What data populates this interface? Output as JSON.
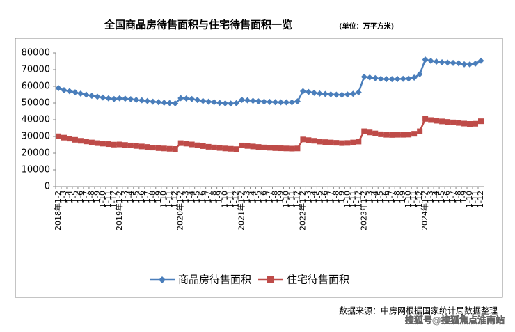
{
  "chart_data": {
    "type": "line",
    "title": "全国商品房待售面积与住宅待售面积一览",
    "subtitle": "(单位：万平方米)",
    "categories": [
      "2018年1-2",
      "1-3",
      "1-4",
      "1-5",
      "1-6",
      "1-7",
      "1-8",
      "1-9",
      "1-10",
      "1-11",
      "1-12",
      "2019年1-2",
      "1-3",
      "1-4",
      "1-5",
      "1-6",
      "1-7",
      "1-8",
      "1-9",
      "1-10",
      "1-11",
      "1-12",
      "2020年1-2",
      "1-3",
      "1-4",
      "1-5",
      "1-6",
      "1-7",
      "1-8",
      "1-9",
      "1-10",
      "1-11",
      "1-12",
      "2021年1-2",
      "1-3",
      "1-4",
      "1-5",
      "1-6",
      "1-7",
      "1-8",
      "1-9",
      "1-10",
      "1-11",
      "1-12",
      "2022年1-2",
      "1-3",
      "1-4",
      "1-5",
      "1-6",
      "1-7",
      "1-8",
      "1-9",
      "1-10",
      "1-11",
      "1-12",
      "2023年1-2",
      "1-3",
      "1-4",
      "1-5",
      "1-6",
      "1-7",
      "1-8",
      "1-9",
      "1-10",
      "1-11",
      "1-12",
      "2024年1-2",
      "1-3",
      "1-4",
      "1-5",
      "1-6",
      "1-7",
      "1-8",
      "1-9",
      "1-10",
      "1-11",
      "1-12"
    ],
    "series": [
      {
        "name": "商品房待售面积",
        "color": "#4a7ebb",
        "marker": "diamond",
        "values": [
          58900,
          57700,
          57100,
          56400,
          55600,
          55000,
          54300,
          53800,
          53300,
          52800,
          52400,
          52800,
          52600,
          52300,
          51900,
          51600,
          51200,
          50800,
          50500,
          50200,
          50000,
          49800,
          52900,
          52700,
          52400,
          51800,
          51200,
          50800,
          50500,
          50100,
          49800,
          49700,
          49900,
          51900,
          51600,
          51300,
          51000,
          50800,
          50700,
          50500,
          50400,
          50400,
          50400,
          51000,
          57100,
          56600,
          56100,
          55700,
          55400,
          55200,
          55000,
          54900,
          55100,
          55500,
          56400,
          65700,
          65300,
          64900,
          64500,
          64300,
          64300,
          64400,
          64500,
          64600,
          65200,
          67300,
          76000,
          75200,
          74800,
          74400,
          74200,
          74000,
          73800,
          73200,
          73100,
          73600,
          75300
        ]
      },
      {
        "name": "住宅待售面积",
        "color": "#be4b48",
        "marker": "square",
        "values": [
          30100,
          29300,
          28700,
          28000,
          27400,
          27000,
          26400,
          26000,
          25700,
          25400,
          25100,
          25200,
          24900,
          24600,
          24300,
          24000,
          23700,
          23300,
          23000,
          22800,
          22600,
          22500,
          26000,
          25700,
          25200,
          24700,
          24200,
          23800,
          23400,
          23100,
          22800,
          22600,
          22400,
          24600,
          24300,
          24000,
          23700,
          23400,
          23200,
          23000,
          22900,
          22800,
          22700,
          22800,
          28200,
          27800,
          27400,
          26900,
          26600,
          26400,
          26200,
          26000,
          26100,
          26400,
          26900,
          33100,
          32400,
          31800,
          31300,
          31000,
          30900,
          31000,
          31000,
          31100,
          31600,
          33100,
          40500,
          39800,
          39400,
          39000,
          38700,
          38400,
          38100,
          37700,
          37500,
          37600,
          39100
        ]
      }
    ],
    "ylim": [
      0,
      80000
    ],
    "yticks": [
      0,
      10000,
      20000,
      30000,
      40000,
      50000,
      60000,
      70000,
      80000
    ],
    "legend": "bottom",
    "source": "数据来源：中房网根据国家统计局数据整理",
    "watermark": "搜狐号@搜狐焦点淮南站"
  }
}
